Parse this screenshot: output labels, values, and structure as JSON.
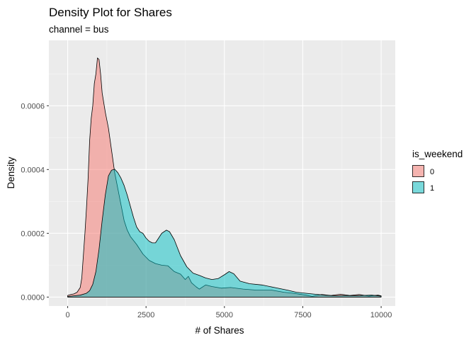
{
  "chart_data": {
    "type": "area",
    "title": "Density Plot for Shares",
    "subtitle": "channel =  bus",
    "xlabel": "# of Shares",
    "ylabel": "Density",
    "xlim": [
      -600,
      10450
    ],
    "ylim": [
      -2.8e-05,
      0.000805
    ],
    "x_ticks": [
      0,
      2500,
      5000,
      7500,
      10000
    ],
    "x_tick_labels": [
      "0",
      "2500",
      "5000",
      "7500",
      "10000"
    ],
    "y_ticks": [
      0,
      0.0002,
      0.0004,
      0.0006
    ],
    "y_tick_labels": [
      "0.0000",
      "0.0002",
      "0.0004",
      "0.0006"
    ],
    "grid": true,
    "legend_title": "is_weekend",
    "legend_position": "right",
    "series": [
      {
        "name": "0",
        "color": "#F8766D",
        "points": [
          [
            0,
            5e-06
          ],
          [
            100,
            8e-06
          ],
          [
            200,
            1e-05
          ],
          [
            300,
            1.5e-05
          ],
          [
            400,
            3e-05
          ],
          [
            450,
            6e-05
          ],
          [
            500,
            0.00013
          ],
          [
            550,
            0.0002
          ],
          [
            600,
            0.00028
          ],
          [
            650,
            0.00037
          ],
          [
            700,
            0.00049
          ],
          [
            750,
            0.00056
          ],
          [
            800,
            0.0006
          ],
          [
            850,
            0.00067
          ],
          [
            900,
            0.0007
          ],
          [
            950,
            0.00075
          ],
          [
            1000,
            0.000745
          ],
          [
            1050,
            0.0007
          ],
          [
            1100,
            0.00064
          ],
          [
            1200,
            0.00058
          ],
          [
            1300,
            0.00053
          ],
          [
            1400,
            0.00046
          ],
          [
            1500,
            0.00039
          ],
          [
            1600,
            0.00034
          ],
          [
            1700,
            0.00029
          ],
          [
            1800,
            0.00024
          ],
          [
            1900,
            0.00021
          ],
          [
            2000,
            0.00019
          ],
          [
            2200,
            0.000165
          ],
          [
            2400,
            0.000135
          ],
          [
            2600,
            0.000115
          ],
          [
            2800,
            0.000105
          ],
          [
            3000,
            0.0001
          ],
          [
            3200,
            9.8e-05
          ],
          [
            3400,
            8e-05
          ],
          [
            3600,
            7.2e-05
          ],
          [
            3750,
            5.5e-05
          ],
          [
            3850,
            6.5e-05
          ],
          [
            3950,
            4.5e-05
          ],
          [
            4100,
            3.2e-05
          ],
          [
            4200,
            2.5e-05
          ],
          [
            4400,
            3.8e-05
          ],
          [
            4600,
            3.3e-05
          ],
          [
            4900,
            2.8e-05
          ],
          [
            5200,
            3e-05
          ],
          [
            5600,
            2.5e-05
          ],
          [
            6000,
            2.2e-05
          ],
          [
            6500,
            2.2e-05
          ],
          [
            6900,
            1.5e-05
          ],
          [
            7200,
            1.2e-05
          ],
          [
            7600,
            6e-06
          ],
          [
            7800,
            2e-06
          ],
          [
            8100,
            8e-06
          ],
          [
            8400,
            5e-06
          ],
          [
            8700,
            9e-06
          ],
          [
            9000,
            5e-06
          ],
          [
            9300,
            8e-06
          ],
          [
            9600,
            3e-06
          ],
          [
            9900,
            6e-06
          ],
          [
            10000,
            4e-06
          ]
        ]
      },
      {
        "name": "1",
        "color": "#00BFC4",
        "points": [
          [
            0,
            2e-06
          ],
          [
            200,
            4e-06
          ],
          [
            400,
            6e-06
          ],
          [
            600,
            1.2e-05
          ],
          [
            700,
            2e-05
          ],
          [
            800,
            4e-05
          ],
          [
            900,
            8e-05
          ],
          [
            1000,
            0.00015
          ],
          [
            1100,
            0.00024
          ],
          [
            1200,
            0.00032
          ],
          [
            1300,
            0.00038
          ],
          [
            1400,
            0.000398
          ],
          [
            1500,
            0.000401
          ],
          [
            1600,
            0.00039
          ],
          [
            1700,
            0.000373
          ],
          [
            1800,
            0.00035
          ],
          [
            1900,
            0.00032
          ],
          [
            2000,
            0.000285
          ],
          [
            2100,
            0.00025
          ],
          [
            2200,
            0.00022
          ],
          [
            2300,
            0.000205
          ],
          [
            2400,
            0.0002
          ],
          [
            2500,
            0.000185
          ],
          [
            2600,
            0.000175
          ],
          [
            2700,
            0.00017
          ],
          [
            2800,
            0.00017
          ],
          [
            2900,
            0.000185
          ],
          [
            3000,
            0.0002
          ],
          [
            3150,
            0.00021
          ],
          [
            3250,
            0.000205
          ],
          [
            3400,
            0.00018
          ],
          [
            3600,
            0.00013
          ],
          [
            3800,
            9.5e-05
          ],
          [
            4000,
            7.5e-05
          ],
          [
            4200,
            6.8e-05
          ],
          [
            4400,
            6e-05
          ],
          [
            4600,
            5.5e-05
          ],
          [
            4800,
            5.8e-05
          ],
          [
            5000,
            7e-05
          ],
          [
            5150,
            8e-05
          ],
          [
            5300,
            7.3e-05
          ],
          [
            5500,
            5e-05
          ],
          [
            5800,
            4.2e-05
          ],
          [
            6200,
            3.8e-05
          ],
          [
            6600,
            3e-05
          ],
          [
            7000,
            2.2e-05
          ],
          [
            7300,
            1.5e-05
          ],
          [
            7600,
            1.2e-05
          ],
          [
            7900,
            9e-06
          ],
          [
            8200,
            6e-06
          ],
          [
            8500,
            4e-06
          ],
          [
            8800,
            5e-06
          ],
          [
            9100,
            4e-06
          ],
          [
            9400,
            5e-06
          ],
          [
            9700,
            6e-06
          ],
          [
            10000,
            3e-06
          ]
        ]
      }
    ]
  }
}
